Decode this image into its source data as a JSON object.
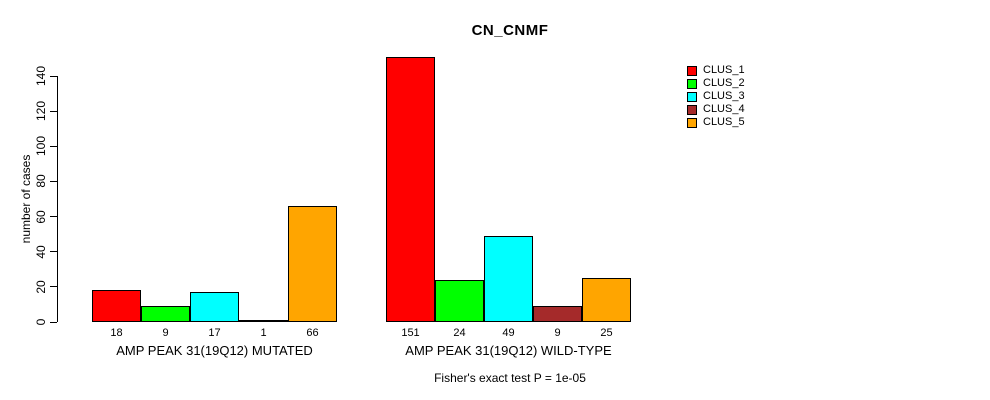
{
  "title": "CN_CNMF",
  "ylabel": "number of cases",
  "footer": "Fisher's exact test P = 1e-05",
  "chart_data": {
    "type": "bar",
    "title": "CN_CNMF",
    "ylabel": "number of cases",
    "xlabel": "",
    "ylim": [
      0,
      140
    ],
    "yticks": [
      0,
      20,
      40,
      60,
      80,
      100,
      120,
      140
    ],
    "grid": false,
    "legend_position": "top-right",
    "bar_value_labels_shown": true,
    "series": [
      "CLUS_1",
      "CLUS_2",
      "CLUS_3",
      "CLUS_4",
      "CLUS_5"
    ],
    "series_colors": [
      "#FF0000",
      "#00FF00",
      "#00FFFF",
      "#A52A2A",
      "#FFA500"
    ],
    "groups": [
      {
        "label": "AMP PEAK 31(19Q12) MUTATED",
        "values": [
          18,
          9,
          17,
          1,
          66
        ]
      },
      {
        "label": "AMP PEAK 31(19Q12) WILD-TYPE",
        "values": [
          151,
          24,
          49,
          9,
          25
        ]
      }
    ],
    "annotation": "Fisher's exact test P = 1e-05"
  }
}
